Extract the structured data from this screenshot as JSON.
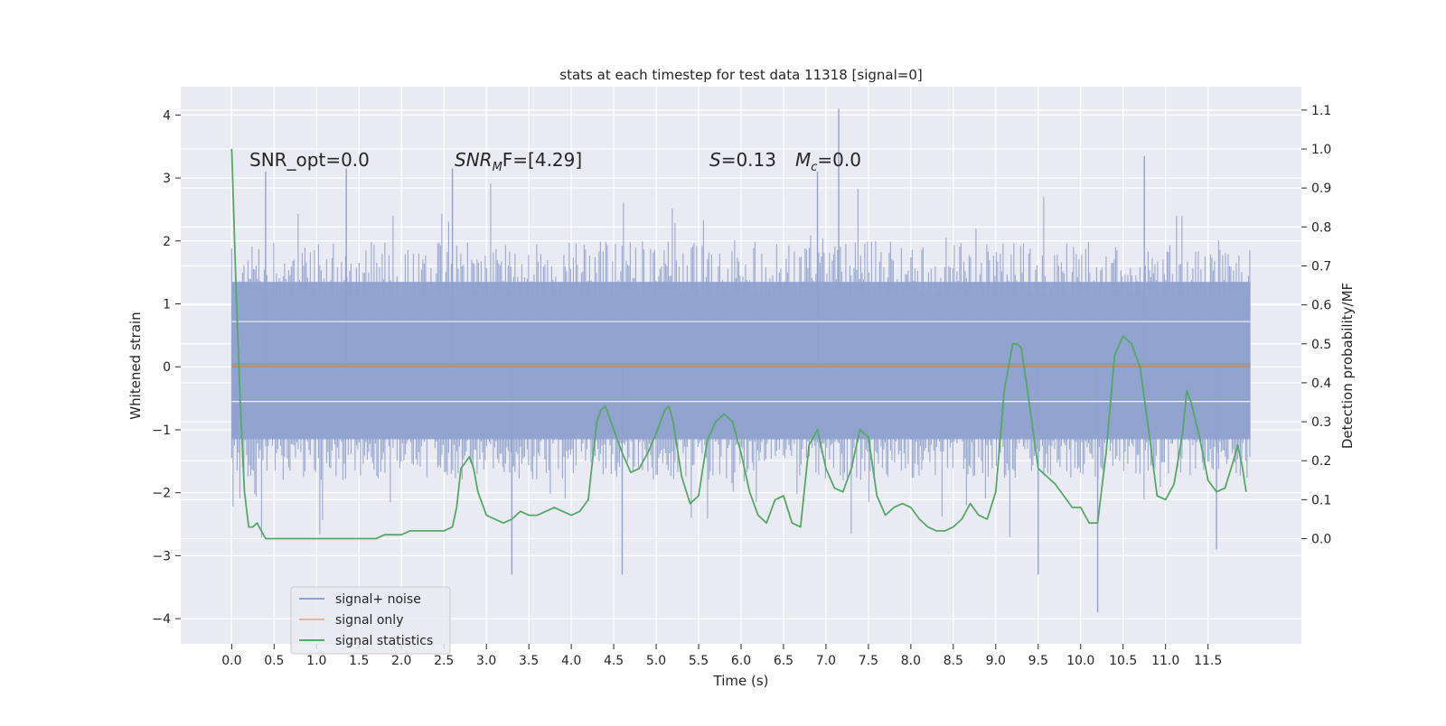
{
  "chart_data": {
    "type": "line",
    "title": "stats at each timestep for test data 11318 [signal=0]",
    "xlabel": "Time (s)",
    "ylabel": "Whitened strain",
    "y2label": "Detection probability/MF",
    "xlim": [
      -0.6,
      12.6
    ],
    "ylim": [
      -4.4,
      4.45
    ],
    "y2lim": [
      -0.27,
      1.16
    ],
    "x_ticks": [
      "0.0",
      "0.5",
      "1.0",
      "1.5",
      "2.0",
      "2.5",
      "3.0",
      "3.5",
      "4.0",
      "4.5",
      "5.0",
      "5.5",
      "6.0",
      "6.5",
      "7.0",
      "7.5",
      "8.0",
      "8.5",
      "9.0",
      "9.5",
      "10.0",
      "10.5",
      "11.0",
      "11.5"
    ],
    "y_ticks": [
      "4",
      "3",
      "2",
      "1",
      "0",
      "−1",
      "−2",
      "−3",
      "−4"
    ],
    "y2_ticks": [
      "1.1",
      "1.0",
      "0.9",
      "0.8",
      "0.7",
      "0.6",
      "0.5",
      "0.4",
      "0.3",
      "0.2",
      "0.1",
      "0.0"
    ],
    "grid": true,
    "legend_position": "lower-left",
    "annotations": {
      "snr_opt": "SNR_opt=0.0",
      "snr_mf_base": "SNR",
      "snr_mf_sub": "M",
      "snr_mf_tail": "F=[4.29]",
      "s_base": "S",
      "s_tail": "=0.13",
      "mc_base": "M",
      "mc_sub": "c",
      "mc_tail": "=0.0"
    },
    "series": [
      {
        "name": "signal+ noise",
        "axis": "left",
        "color": "#8fa2cc",
        "t_range": [
          0.0,
          12.0
        ],
        "core_band": [
          -1.15,
          1.35
        ],
        "typical_range": [
          -1.8,
          2.0
        ],
        "extremes": [
          {
            "t": 0.4,
            "v": 3.1
          },
          {
            "t": 1.35,
            "v": 3.15
          },
          {
            "t": 2.6,
            "v": 3.15
          },
          {
            "t": 3.3,
            "v": -3.3
          },
          {
            "t": 4.6,
            "v": -3.3
          },
          {
            "t": 6.9,
            "v": 3.1
          },
          {
            "t": 7.15,
            "v": 4.1
          },
          {
            "t": 9.5,
            "v": -3.3
          },
          {
            "t": 10.2,
            "v": -3.9
          },
          {
            "t": 10.75,
            "v": 3.35
          },
          {
            "t": 11.6,
            "v": -2.9
          }
        ]
      },
      {
        "name": "signal only",
        "axis": "left",
        "color": "#dd8452",
        "x": [
          0.0,
          12.0
        ],
        "y": [
          0.0,
          0.0
        ]
      },
      {
        "name": "signal statistics",
        "axis": "right",
        "color": "#55a868",
        "x": [
          0.0,
          0.05,
          0.1,
          0.15,
          0.2,
          0.25,
          0.3,
          0.35,
          0.4,
          0.45,
          0.5,
          0.6,
          0.7,
          0.8,
          0.9,
          1.0,
          1.1,
          1.2,
          1.3,
          1.4,
          1.5,
          1.6,
          1.7,
          1.8,
          1.9,
          2.0,
          2.1,
          2.2,
          2.3,
          2.4,
          2.5,
          2.6,
          2.65,
          2.7,
          2.8,
          2.85,
          2.9,
          3.0,
          3.1,
          3.2,
          3.3,
          3.4,
          3.5,
          3.6,
          3.7,
          3.8,
          3.9,
          4.0,
          4.1,
          4.2,
          4.3,
          4.35,
          4.4,
          4.5,
          4.6,
          4.7,
          4.8,
          4.9,
          5.0,
          5.1,
          5.15,
          5.2,
          5.3,
          5.4,
          5.5,
          5.6,
          5.7,
          5.8,
          5.9,
          6.0,
          6.1,
          6.2,
          6.3,
          6.4,
          6.5,
          6.6,
          6.7,
          6.8,
          6.9,
          7.0,
          7.1,
          7.2,
          7.3,
          7.4,
          7.5,
          7.6,
          7.7,
          7.8,
          7.9,
          8.0,
          8.1,
          8.2,
          8.3,
          8.4,
          8.5,
          8.6,
          8.7,
          8.8,
          8.9,
          9.0,
          9.1,
          9.2,
          9.25,
          9.3,
          9.4,
          9.5,
          9.6,
          9.7,
          9.8,
          9.9,
          10.0,
          10.1,
          10.2,
          10.3,
          10.4,
          10.5,
          10.6,
          10.7,
          10.8,
          10.9,
          11.0,
          11.1,
          11.2,
          11.25,
          11.3,
          11.4,
          11.5,
          11.6,
          11.7,
          11.8,
          11.85,
          11.9,
          11.95
        ],
        "y": [
          1.0,
          0.65,
          0.35,
          0.12,
          0.03,
          0.03,
          0.04,
          0.02,
          0.0,
          0.0,
          0.0,
          0.0,
          0.0,
          0.0,
          0.0,
          0.0,
          0.0,
          0.0,
          0.0,
          0.0,
          0.0,
          0.0,
          0.0,
          0.01,
          0.01,
          0.01,
          0.02,
          0.02,
          0.02,
          0.02,
          0.02,
          0.03,
          0.08,
          0.18,
          0.21,
          0.18,
          0.12,
          0.06,
          0.05,
          0.04,
          0.05,
          0.07,
          0.06,
          0.06,
          0.07,
          0.08,
          0.07,
          0.06,
          0.07,
          0.1,
          0.3,
          0.33,
          0.34,
          0.28,
          0.22,
          0.17,
          0.18,
          0.22,
          0.27,
          0.33,
          0.34,
          0.3,
          0.16,
          0.09,
          0.11,
          0.25,
          0.3,
          0.32,
          0.3,
          0.22,
          0.12,
          0.06,
          0.04,
          0.1,
          0.11,
          0.04,
          0.03,
          0.24,
          0.28,
          0.18,
          0.13,
          0.12,
          0.18,
          0.28,
          0.26,
          0.11,
          0.06,
          0.08,
          0.09,
          0.08,
          0.05,
          0.03,
          0.02,
          0.02,
          0.03,
          0.05,
          0.09,
          0.06,
          0.05,
          0.12,
          0.38,
          0.5,
          0.5,
          0.49,
          0.34,
          0.18,
          0.16,
          0.14,
          0.11,
          0.08,
          0.08,
          0.04,
          0.04,
          0.22,
          0.47,
          0.52,
          0.5,
          0.44,
          0.28,
          0.11,
          0.1,
          0.14,
          0.27,
          0.38,
          0.35,
          0.26,
          0.15,
          0.12,
          0.13,
          0.2,
          0.24,
          0.19,
          0.12
        ]
      }
    ]
  }
}
